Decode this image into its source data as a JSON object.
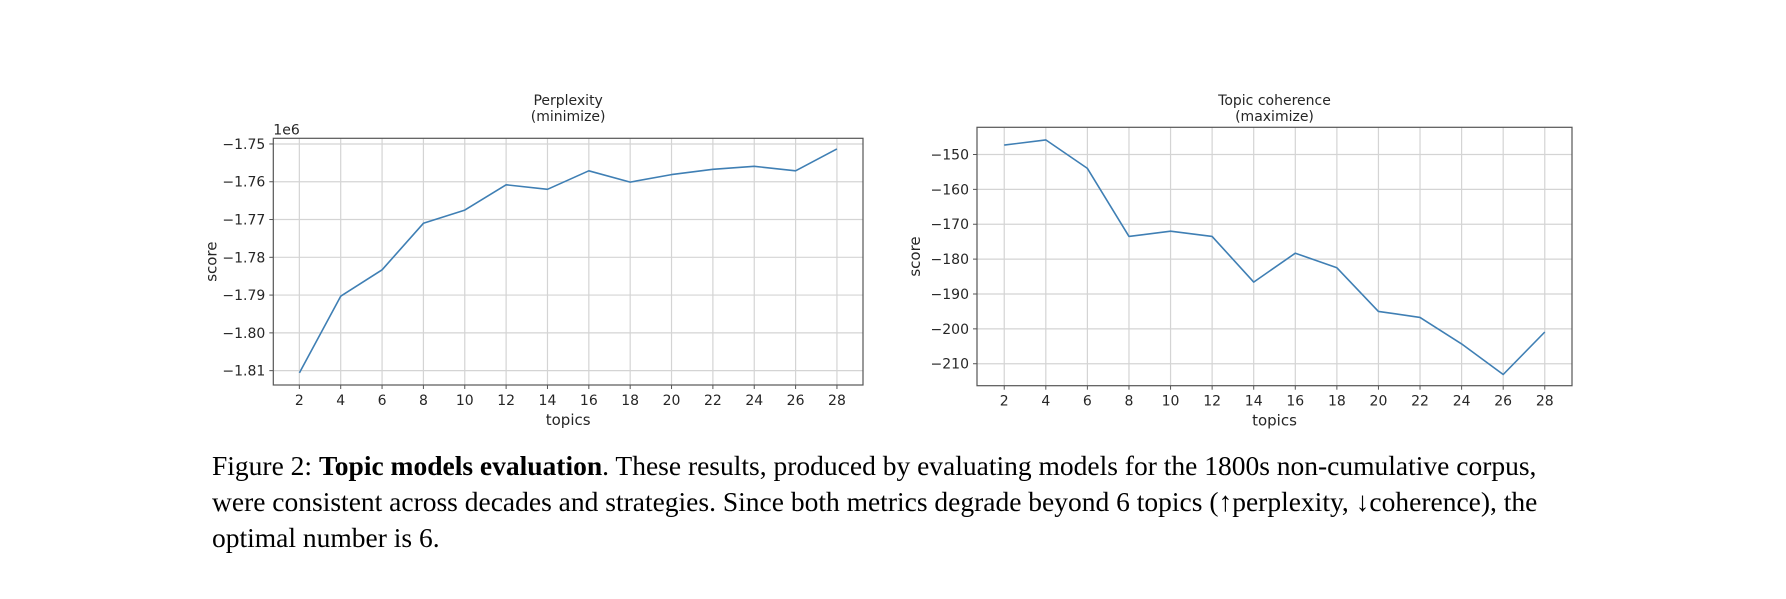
{
  "chart_data": [
    {
      "type": "line",
      "title": "Perplexity\n(minimize)",
      "title_lines": [
        "Perplexity",
        "(minimize)"
      ],
      "xlabel": "topics",
      "ylabel": "score",
      "y_offset_label": "1e6",
      "x": [
        2,
        4,
        6,
        8,
        10,
        12,
        14,
        16,
        18,
        20,
        22,
        24,
        26,
        28
      ],
      "series": [
        {
          "name": "perplexity",
          "values": [
            -1.8106,
            -1.7903,
            -1.7833,
            -1.771,
            -1.7675,
            -1.7608,
            -1.762,
            -1.7571,
            -1.7601,
            -1.7581,
            -1.7567,
            -1.7559,
            -1.7571,
            -1.7513
          ],
          "color": "#3f7fb4"
        }
      ],
      "xticks": [
        2,
        4,
        6,
        8,
        10,
        12,
        14,
        16,
        18,
        20,
        22,
        24,
        26,
        28
      ],
      "yticks": [
        -1.81,
        -1.8,
        -1.79,
        -1.78,
        -1.77,
        -1.76,
        -1.75
      ],
      "ytick_labels": [
        "−1.81",
        "−1.80",
        "−1.79",
        "−1.78",
        "−1.77",
        "−1.76",
        "−1.75"
      ],
      "xlim": [
        0.74,
        29.26
      ],
      "ylim": [
        -1.8138,
        -1.7485
      ],
      "grid": true,
      "legend": null
    },
    {
      "type": "line",
      "title": "Topic coherence\n(maximize)",
      "title_lines": [
        "Topic coherence",
        "(maximize)"
      ],
      "xlabel": "topics",
      "ylabel": "score",
      "x": [
        2,
        4,
        6,
        8,
        10,
        12,
        14,
        16,
        18,
        20,
        22,
        24,
        26,
        28
      ],
      "series": [
        {
          "name": "coherence",
          "values": [
            -147.3,
            -145.8,
            -154.0,
            -173.5,
            -172.0,
            -173.5,
            -186.6,
            -178.3,
            -182.5,
            -195.0,
            -196.7,
            -204.3,
            -213.1,
            -200.9
          ],
          "color": "#3f7fb4"
        }
      ],
      "xticks": [
        2,
        4,
        6,
        8,
        10,
        12,
        14,
        16,
        18,
        20,
        22,
        24,
        26,
        28
      ],
      "yticks": [
        -210,
        -200,
        -190,
        -180,
        -170,
        -160,
        -150
      ],
      "ytick_labels": [
        "−210",
        "−200",
        "−190",
        "−180",
        "−170",
        "−160",
        "−150"
      ],
      "xlim": [
        0.69,
        29.31
      ],
      "ylim": [
        -216.3,
        -142.2
      ],
      "grid": true,
      "legend": null
    }
  ],
  "caption": {
    "label": "Figure 2: ",
    "bold": "Topic models evaluation",
    "text": ". These results, produced by evaluating models for the 1800s non-cumulative corpus, were consistent across decades and strategies.  Since both metrics degrade beyond 6 topics (↑perplexity, ↓coherence), the optimal number is 6."
  },
  "colors": {
    "line": "#3f7fb4",
    "grid": "#d4d4d4",
    "axes": "#555555",
    "text": "#262626"
  }
}
